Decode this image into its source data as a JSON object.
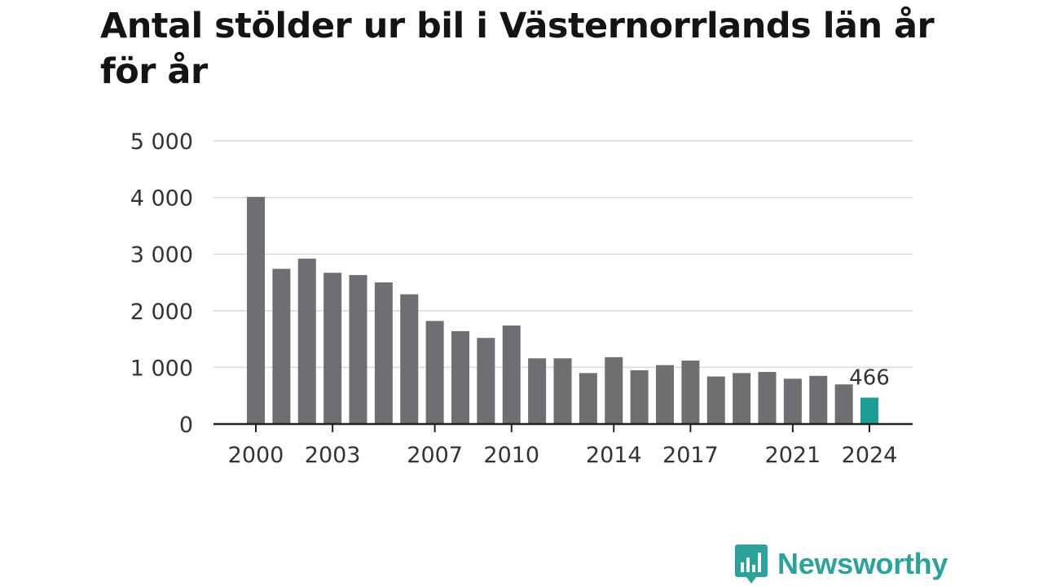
{
  "chart_data": {
    "type": "bar",
    "title": "Antal stölder ur bil i Västernorrlands län år för år",
    "xlabel": "",
    "ylabel": "",
    "ylim": [
      0,
      5000
    ],
    "yticks": [
      0,
      1000,
      2000,
      3000,
      4000,
      5000
    ],
    "ytick_labels": [
      "0",
      "1 000",
      "2 000",
      "3 000",
      "4 000",
      "5 000"
    ],
    "xtick_labels": [
      "2000",
      "2003",
      "2007",
      "2010",
      "2014",
      "2017",
      "2021",
      "2024"
    ],
    "categories": [
      "2000",
      "2001",
      "2002",
      "2003",
      "2004",
      "2005",
      "2006",
      "2007",
      "2008",
      "2009",
      "2010",
      "2011",
      "2012",
      "2013",
      "2014",
      "2015",
      "2016",
      "2017",
      "2018",
      "2019",
      "2020",
      "2021",
      "2022",
      "2023",
      "2024"
    ],
    "values": [
      4010,
      2740,
      2920,
      2670,
      2630,
      2500,
      2290,
      1820,
      1640,
      1520,
      1740,
      1160,
      1160,
      900,
      1180,
      950,
      1040,
      1120,
      840,
      900,
      920,
      800,
      850,
      700,
      466
    ],
    "bar_color": "#6f6e73",
    "highlight_color": "#1a9e97",
    "highlight_index": 24,
    "highlight_label": "466",
    "grid": true
  },
  "brand": {
    "name": "Newsworthy",
    "color": "#2ba39b"
  }
}
